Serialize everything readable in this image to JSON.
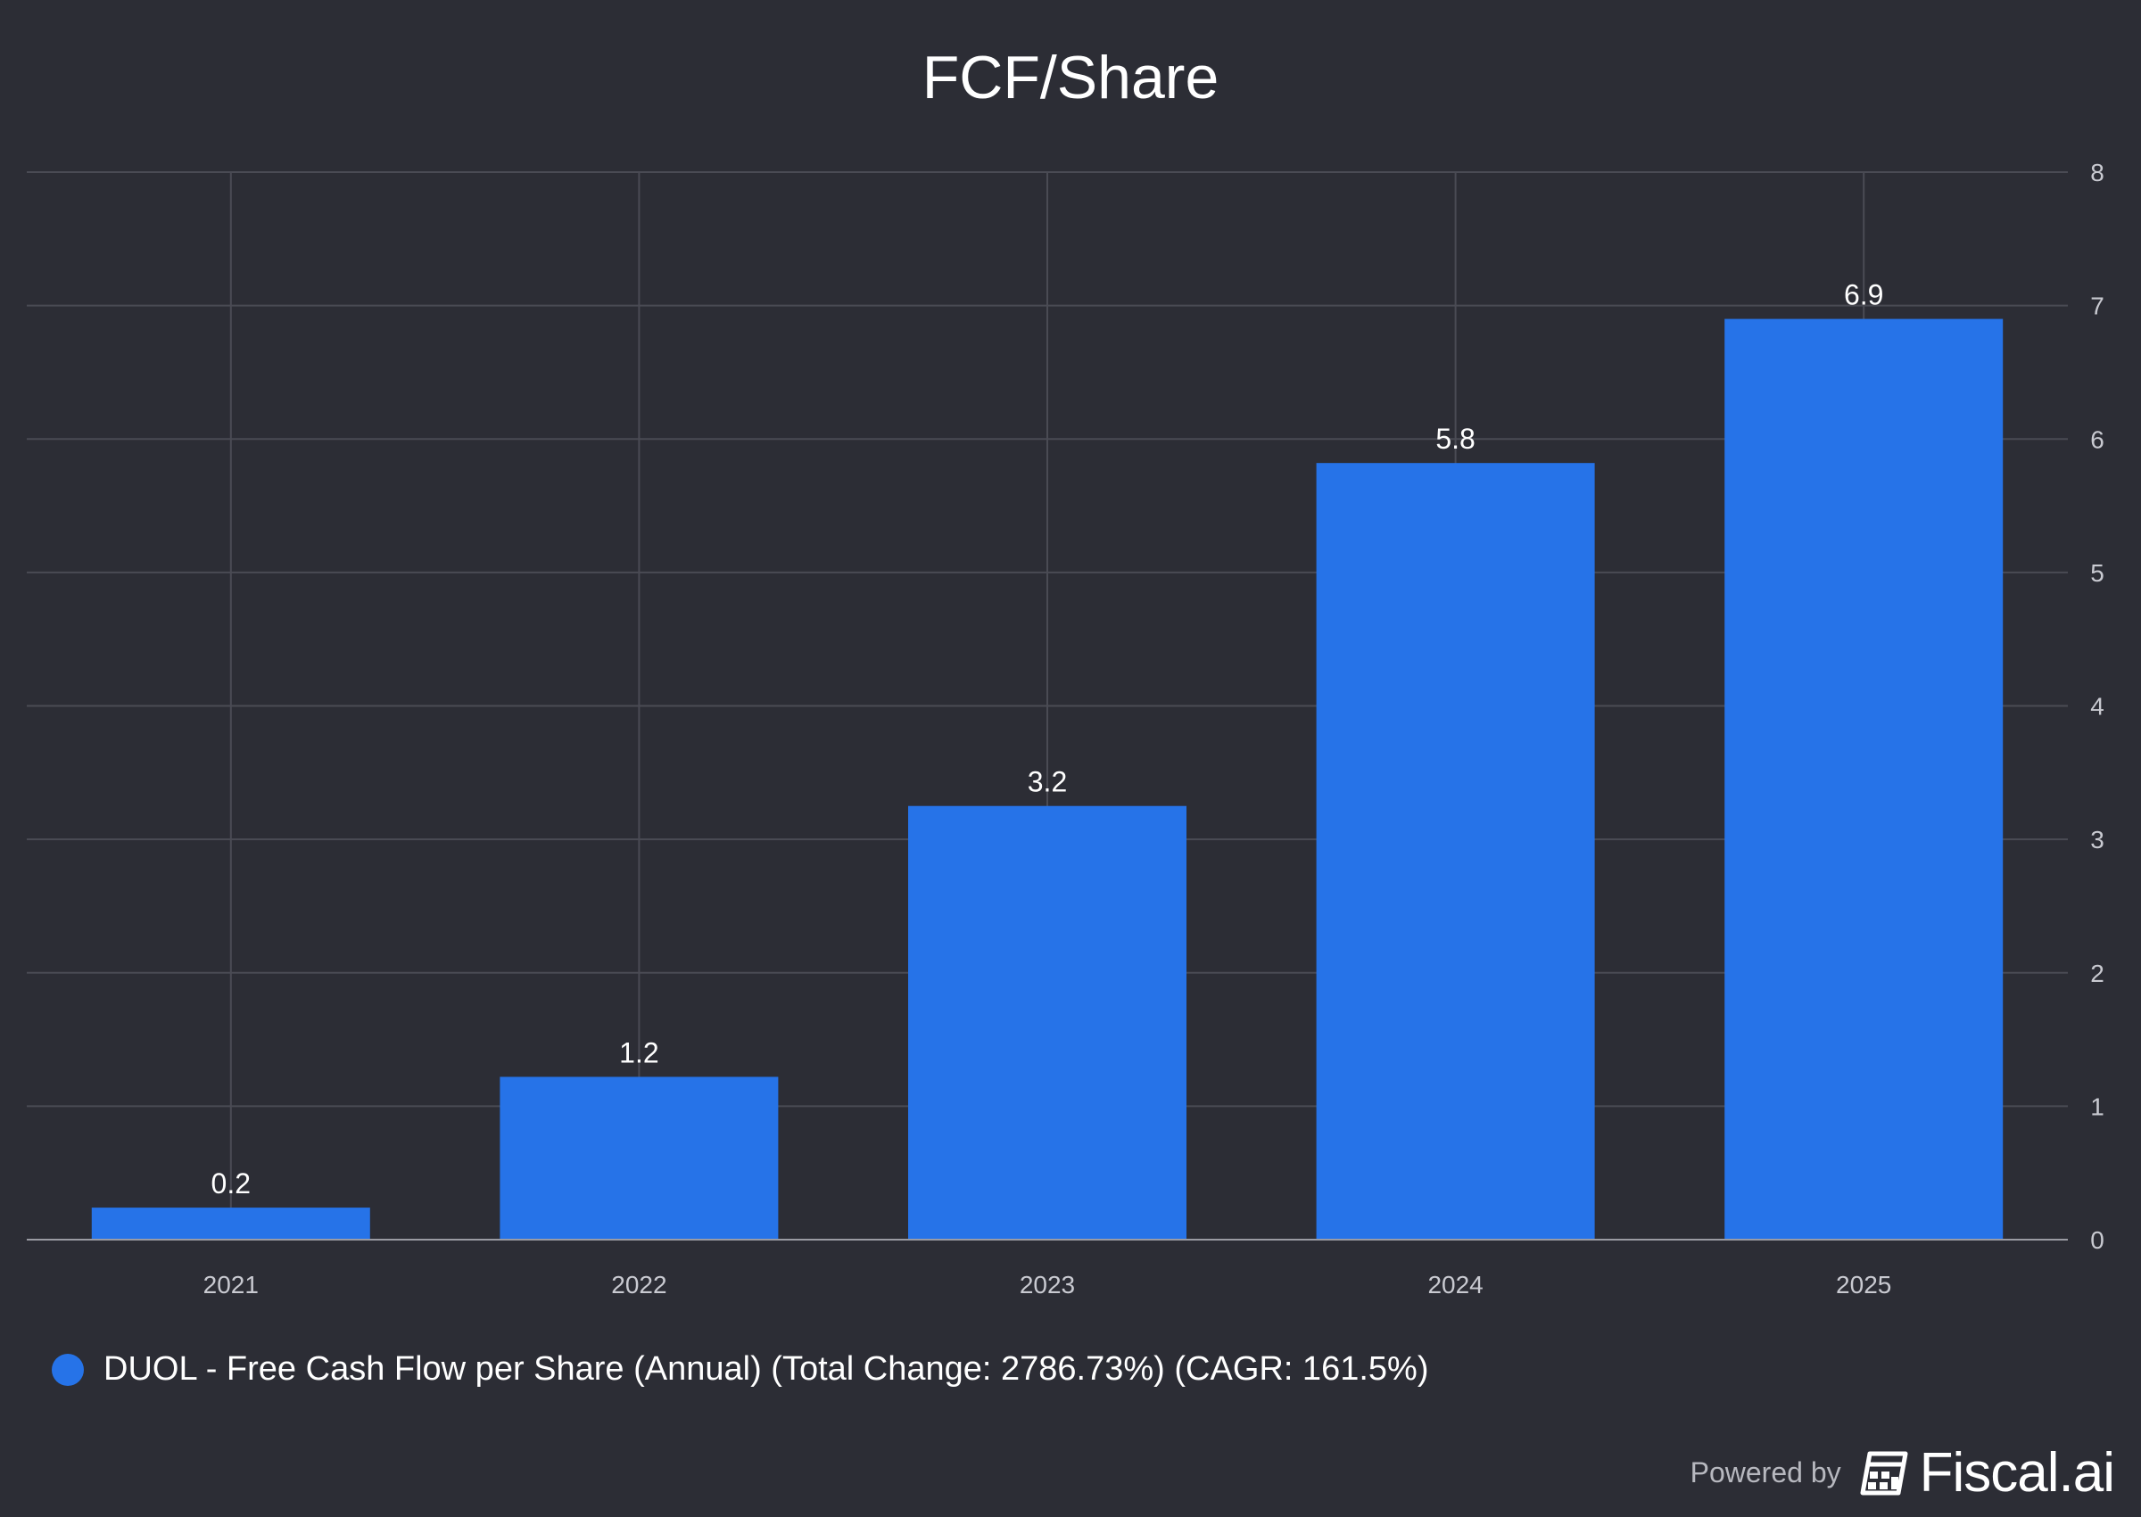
{
  "chart_data": {
    "type": "bar",
    "title": "FCF/Share",
    "categories": [
      "2021",
      "2022",
      "2023",
      "2024",
      "2025"
    ],
    "series": [
      {
        "name": "DUOL - Free Cash Flow per Share (Annual) (Total Change: 2786.73%) (CAGR: 161.5%)",
        "values": [
          0.24,
          1.22,
          3.25,
          5.82,
          6.9
        ],
        "data_labels": [
          "0.2",
          "1.2",
          "3.2",
          "5.8",
          "6.9"
        ]
      }
    ],
    "yticks": [
      "0",
      "1",
      "2",
      "3",
      "4",
      "5",
      "6",
      "7",
      "8"
    ],
    "ylim": [
      0,
      8
    ],
    "y_axis_side": "right",
    "grid": true,
    "legend_position": "bottom-left"
  },
  "colors": {
    "background": "#2c2d35",
    "bar": "#2673e8",
    "grid": "#4a4b54"
  },
  "footer": {
    "powered_by": "Powered by",
    "brand": "Fiscal.ai",
    "brand_icon": "fiscal-logo-icon"
  }
}
